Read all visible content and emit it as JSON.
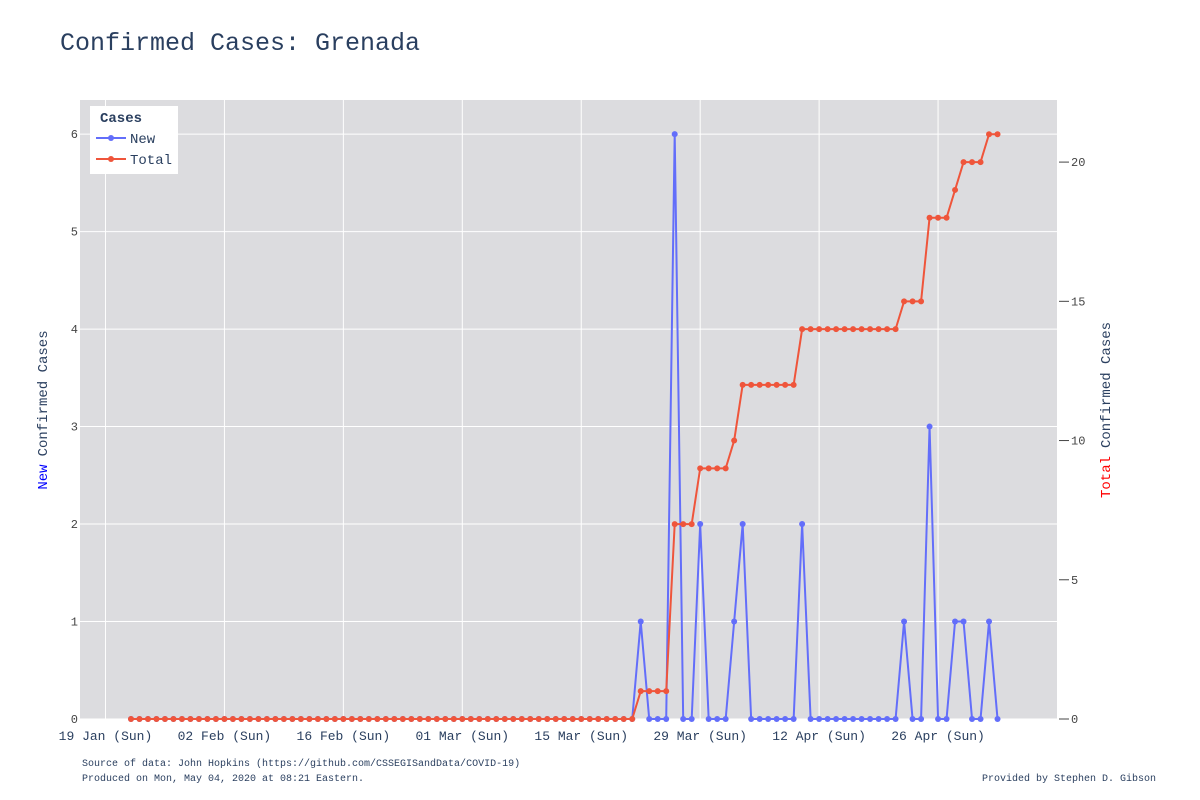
{
  "chart_data": {
    "type": "line",
    "title": "Confirmed Cases: Grenada",
    "ylabel": {
      "highlight": "New",
      "rest": "Confirmed Cases"
    },
    "y2label": {
      "highlight": "Total",
      "rest": "Confirmed Cases"
    },
    "legend_title": "Cases",
    "legend": "top-left",
    "grid": true,
    "x": [
      "22 Jan",
      "23 Jan",
      "24 Jan",
      "25 Jan",
      "26 Jan",
      "27 Jan",
      "28 Jan",
      "29 Jan",
      "30 Jan",
      "31 Jan",
      "01 Feb",
      "02 Feb",
      "03 Feb",
      "04 Feb",
      "05 Feb",
      "06 Feb",
      "07 Feb",
      "08 Feb",
      "09 Feb",
      "10 Feb",
      "11 Feb",
      "12 Feb",
      "13 Feb",
      "14 Feb",
      "15 Feb",
      "16 Feb",
      "17 Feb",
      "18 Feb",
      "19 Feb",
      "20 Feb",
      "21 Feb",
      "22 Feb",
      "23 Feb",
      "24 Feb",
      "25 Feb",
      "26 Feb",
      "27 Feb",
      "28 Feb",
      "29 Feb",
      "01 Mar",
      "02 Mar",
      "03 Mar",
      "04 Mar",
      "05 Mar",
      "06 Mar",
      "07 Mar",
      "08 Mar",
      "09 Mar",
      "10 Mar",
      "11 Mar",
      "12 Mar",
      "13 Mar",
      "14 Mar",
      "15 Mar",
      "16 Mar",
      "17 Mar",
      "18 Mar",
      "19 Mar",
      "20 Mar",
      "21 Mar",
      "22 Mar",
      "23 Mar",
      "24 Mar",
      "25 Mar",
      "26 Mar",
      "27 Mar",
      "28 Mar",
      "29 Mar",
      "30 Mar",
      "31 Mar",
      "01 Apr",
      "02 Apr",
      "03 Apr",
      "04 Apr",
      "05 Apr",
      "06 Apr",
      "07 Apr",
      "08 Apr",
      "09 Apr",
      "10 Apr",
      "11 Apr",
      "12 Apr",
      "13 Apr",
      "14 Apr",
      "15 Apr",
      "16 Apr",
      "17 Apr",
      "18 Apr",
      "19 Apr",
      "20 Apr",
      "21 Apr",
      "22 Apr",
      "23 Apr",
      "24 Apr",
      "25 Apr",
      "26 Apr",
      "27 Apr",
      "28 Apr",
      "29 Apr",
      "30 Apr",
      "01 May",
      "02 May",
      "03 May"
    ],
    "series": [
      {
        "name": "New",
        "color": "#636efa",
        "axis": "y",
        "values": [
          0,
          0,
          0,
          0,
          0,
          0,
          0,
          0,
          0,
          0,
          0,
          0,
          0,
          0,
          0,
          0,
          0,
          0,
          0,
          0,
          0,
          0,
          0,
          0,
          0,
          0,
          0,
          0,
          0,
          0,
          0,
          0,
          0,
          0,
          0,
          0,
          0,
          0,
          0,
          0,
          0,
          0,
          0,
          0,
          0,
          0,
          0,
          0,
          0,
          0,
          0,
          0,
          0,
          0,
          0,
          0,
          0,
          0,
          0,
          0,
          1,
          0,
          0,
          0,
          6,
          0,
          0,
          2,
          0,
          0,
          0,
          1,
          2,
          0,
          0,
          0,
          0,
          0,
          0,
          2,
          0,
          0,
          0,
          0,
          0,
          0,
          0,
          0,
          0,
          0,
          0,
          1,
          0,
          0,
          3,
          0,
          0,
          1,
          1,
          0,
          0,
          1,
          0
        ]
      },
      {
        "name": "Total",
        "color": "#ef553b",
        "axis": "y2",
        "values": [
          0,
          0,
          0,
          0,
          0,
          0,
          0,
          0,
          0,
          0,
          0,
          0,
          0,
          0,
          0,
          0,
          0,
          0,
          0,
          0,
          0,
          0,
          0,
          0,
          0,
          0,
          0,
          0,
          0,
          0,
          0,
          0,
          0,
          0,
          0,
          0,
          0,
          0,
          0,
          0,
          0,
          0,
          0,
          0,
          0,
          0,
          0,
          0,
          0,
          0,
          0,
          0,
          0,
          0,
          0,
          0,
          0,
          0,
          0,
          0,
          1,
          1,
          1,
          1,
          7,
          7,
          7,
          9,
          9,
          9,
          9,
          10,
          12,
          12,
          12,
          12,
          12,
          12,
          12,
          14,
          14,
          14,
          14,
          14,
          14,
          14,
          14,
          14,
          14,
          14,
          14,
          15,
          15,
          15,
          18,
          18,
          18,
          19,
          20,
          20,
          20,
          21,
          21
        ]
      }
    ],
    "xlim": [
      "16 Jan",
      "10 May"
    ],
    "xticks": [
      {
        "value": "19 Jan",
        "label": "19 Jan (Sun)"
      },
      {
        "value": "02 Feb",
        "label": "02 Feb (Sun)"
      },
      {
        "value": "16 Feb",
        "label": "16 Feb (Sun)"
      },
      {
        "value": "01 Mar",
        "label": "01 Mar (Sun)"
      },
      {
        "value": "15 Mar",
        "label": "15 Mar (Sun)"
      },
      {
        "value": "29 Mar",
        "label": "29 Mar (Sun)"
      },
      {
        "value": "12 Apr",
        "label": "12 Apr (Sun)"
      },
      {
        "value": "26 Apr",
        "label": "26 Apr (Sun)"
      }
    ],
    "ylim": [
      0,
      6.35
    ],
    "yticks": [
      0,
      1,
      2,
      3,
      4,
      5,
      6
    ],
    "y2lim": [
      0,
      22.23
    ],
    "y2ticks": [
      0,
      5,
      10,
      15,
      20
    ],
    "source": "Source of data: John Hopkins (https://github.com/CSSEGISandData/COVID-19)",
    "produced": "Produced on Mon, May 04, 2020 at 08:21 Eastern.",
    "credit": "Provided by Stephen D. Gibson"
  }
}
